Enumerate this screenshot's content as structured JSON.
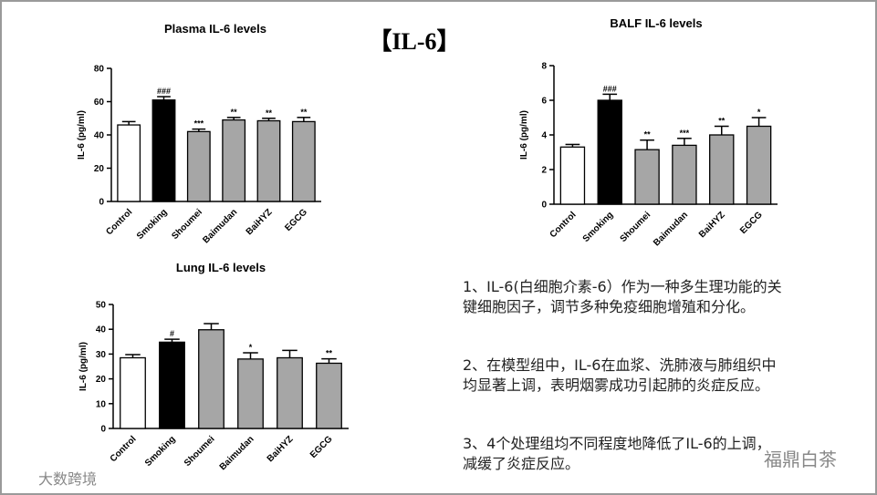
{
  "slide_title": "【IL-6】",
  "chart_data": [
    {
      "type": "bar",
      "title": "Plasma IL-6 levels",
      "y_label": "IL-6 (pg/ml)",
      "categories": [
        "Control",
        "Smoking",
        "Shoumei",
        "Baimudan",
        "BaiHYZ",
        "EGCG"
      ],
      "values": [
        46,
        61,
        42,
        49,
        48.5,
        48
      ],
      "errors": [
        2,
        2,
        1.5,
        1.5,
        1.5,
        2.5
      ],
      "significance": [
        null,
        "###",
        "***",
        "**",
        "**",
        "**"
      ],
      "colors": [
        "#ffffff",
        "#000000",
        "#a6a6a6",
        "#a6a6a6",
        "#a6a6a6",
        "#a6a6a6"
      ],
      "ylim": [
        0,
        80
      ],
      "yticks": [
        0,
        20,
        40,
        60,
        80
      ]
    },
    {
      "type": "bar",
      "title": "BALF IL-6 levels",
      "y_label": "IL-6 (pg/ml)",
      "categories": [
        "Control",
        "Smoking",
        "Shoumei",
        "Baimudan",
        "BaiHYZ",
        "EGCG"
      ],
      "values": [
        3.3,
        6.0,
        3.15,
        3.4,
        4.0,
        4.5
      ],
      "errors": [
        0.15,
        0.35,
        0.55,
        0.4,
        0.5,
        0.5
      ],
      "significance": [
        null,
        "###",
        "**",
        "***",
        "**",
        "*"
      ],
      "colors": [
        "#ffffff",
        "#000000",
        "#a6a6a6",
        "#a6a6a6",
        "#a6a6a6",
        "#a6a6a6"
      ],
      "ylim": [
        0,
        8
      ],
      "yticks": [
        0,
        2,
        4,
        6,
        8
      ]
    },
    {
      "type": "bar",
      "title": "Lung IL-6 levels",
      "y_label": "IL-6 (pg/ml)",
      "categories": [
        "Control",
        "Smoking",
        "Shoumei",
        "Baimudan",
        "BaiHYZ",
        "EGCG"
      ],
      "values": [
        28.5,
        34.8,
        39.8,
        28,
        28.5,
        26.3
      ],
      "errors": [
        1.3,
        1.2,
        2.5,
        2.5,
        3,
        1.8
      ],
      "significance": [
        null,
        "#",
        null,
        "*",
        null,
        "**"
      ],
      "colors": [
        "#ffffff",
        "#000000",
        "#a6a6a6",
        "#a6a6a6",
        "#a6a6a6",
        "#a6a6a6"
      ],
      "ylim": [
        0,
        50
      ],
      "yticks": [
        0,
        10,
        20,
        30,
        40,
        50
      ]
    }
  ],
  "notes": [
    "1、IL-6(白细胞介素-6）作为一种多生理功能的关键细胞因子，调节多种免疫细胞增殖和分化。",
    "2、在模型组中，IL-6在血浆、洗肺液与肺组织中均显著上调，表明烟雾成功引起肺的炎症反应。",
    "3、4个处理组均不同程度地降低了IL-6的上调，减缓了炎症反应。"
  ],
  "watermarks": [
    "大数跨境",
    "福鼎白茶"
  ]
}
